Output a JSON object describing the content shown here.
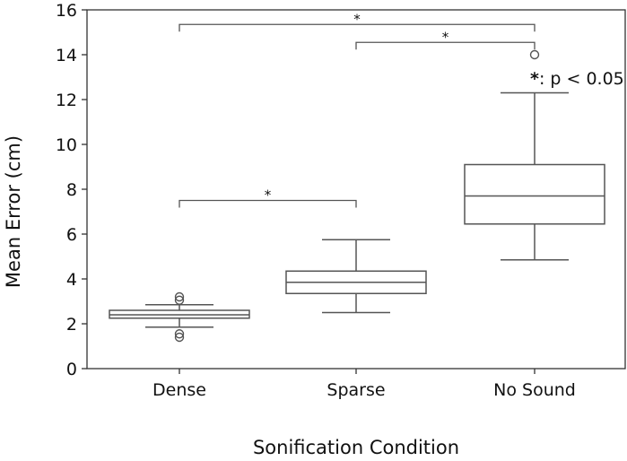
{
  "chart_data": {
    "type": "box",
    "xlabel": "Sonification Condition",
    "ylabel": "Mean Error (cm)",
    "ylim": [
      0,
      16
    ],
    "yticks": [
      0,
      2,
      4,
      6,
      8,
      10,
      12,
      14,
      16
    ],
    "categories": [
      "Dense",
      "Sparse",
      "No Sound"
    ],
    "boxes": [
      {
        "category": "Dense",
        "whisker_low": 1.85,
        "q1": 2.25,
        "median": 2.4,
        "q3": 2.6,
        "whisker_high": 2.85,
        "outliers": [
          3.2,
          3.05,
          1.55,
          1.4
        ]
      },
      {
        "category": "Sparse",
        "whisker_low": 2.5,
        "q1": 3.35,
        "median": 3.85,
        "q3": 4.35,
        "whisker_high": 5.75,
        "outliers": []
      },
      {
        "category": "No Sound",
        "whisker_low": 4.85,
        "q1": 6.45,
        "median": 7.7,
        "q3": 9.1,
        "whisker_high": 12.3,
        "outliers": [
          14.0
        ]
      }
    ],
    "significance": [
      {
        "from": "Dense",
        "to": "No Sound",
        "y": 15.35,
        "label": "*"
      },
      {
        "from": "Sparse",
        "to": "No Sound",
        "y": 14.55,
        "label": "*"
      },
      {
        "from": "Dense",
        "to": "Sparse",
        "y": 7.5,
        "label": "*"
      }
    ],
    "annotation": {
      "star": "*",
      "text": ": p < 0.05"
    },
    "colors": {
      "line": "#555555",
      "axis": "#333333",
      "box_fill": "#ffffff"
    }
  }
}
